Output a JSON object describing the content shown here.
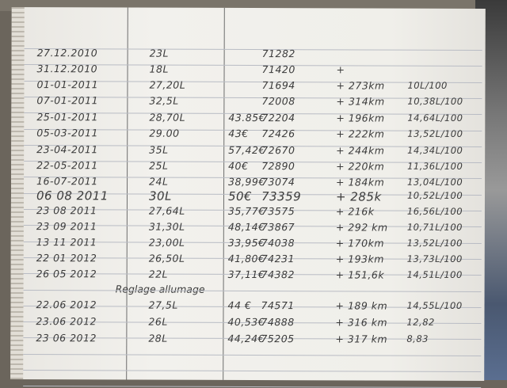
{
  "log": {
    "rows": [
      {
        "date": "27.12.2010",
        "liters": "23L",
        "price": "",
        "odometer": "71282",
        "distance": "",
        "consumption": ""
      },
      {
        "date": "31.12.2010",
        "liters": "18L",
        "price": "",
        "odometer": "71420",
        "distance": "+",
        "consumption": ""
      },
      {
        "date": "01-01-2011",
        "liters": "27,20L",
        "price": "",
        "odometer": "71694",
        "distance": "+ 273km",
        "consumption": "10L/100"
      },
      {
        "date": "07-01-2011",
        "liters": "32,5L",
        "price": "",
        "odometer": "72008",
        "distance": "+ 314km",
        "consumption": "10,38L/100"
      },
      {
        "date": "25-01-2011",
        "liters": "28,70L",
        "price": "43.85€",
        "odometer": "72204",
        "distance": "+ 196km",
        "consumption": "14,64L/100"
      },
      {
        "date": "05-03-2011",
        "liters": "29.00",
        "price": "43€",
        "odometer": "72426",
        "distance": "+ 222km",
        "consumption": "13,52L/100"
      },
      {
        "date": "23-04-2011",
        "liters": "35L",
        "price": "57,42€",
        "odometer": "72670",
        "distance": "+ 244km",
        "consumption": "14,34L/100"
      },
      {
        "date": "22-05-2011",
        "liters": "25L",
        "price": "40€",
        "odometer": "72890",
        "distance": "+ 220km",
        "consumption": "11,36L/100"
      },
      {
        "date": "16-07-2011",
        "liters": "24L",
        "price": "38,99€",
        "odometer": "73074",
        "distance": "+ 184km",
        "consumption": "13,04L/100"
      },
      {
        "date": "06 08 2011",
        "liters": "30L",
        "price": "50€",
        "odometer": "73359",
        "distance": "+ 285k",
        "consumption": "10,52L/100"
      },
      {
        "date": "23 08 2011",
        "liters": "27,64L",
        "price": "35,77€",
        "odometer": "73575",
        "distance": "+ 216k",
        "consumption": "16,56L/100"
      },
      {
        "date": "23 09 2011",
        "liters": "31,30L",
        "price": "48,14€",
        "odometer": "73867",
        "distance": "+ 292 km",
        "consumption": "10,71L/100"
      },
      {
        "date": "13 11 2011",
        "liters": "23,00L",
        "price": "33,95€",
        "odometer": "74038",
        "distance": "+ 170km",
        "consumption": "13,52L/100"
      },
      {
        "date": "22 01 2012",
        "liters": "26,50L",
        "price": "41,80€",
        "odometer": "74231",
        "distance": "+ 193km",
        "consumption": "13,73L/100"
      },
      {
        "date": "26 05 2012",
        "liters": "22L",
        "price": "37,11€",
        "odometer": "74382",
        "distance": "+ 151,6k",
        "consumption": "14,51L/100"
      },
      {
        "date": "22.06 2012",
        "liters": "27,5L",
        "price": "44 €",
        "odometer": "74571",
        "distance": "+ 189 km",
        "consumption": "14,55L/100"
      },
      {
        "date": "23.06 2012",
        "liters": "26L",
        "price": "40,53€",
        "odometer": "74888",
        "distance": "+ 316 km",
        "consumption": "12,82"
      },
      {
        "date": "23 06 2012",
        "liters": "28L",
        "price": "44,24€",
        "odometer": "75205",
        "distance": "+ 317 km",
        "consumption": "8,83"
      }
    ],
    "note": "Reglage allumage"
  }
}
